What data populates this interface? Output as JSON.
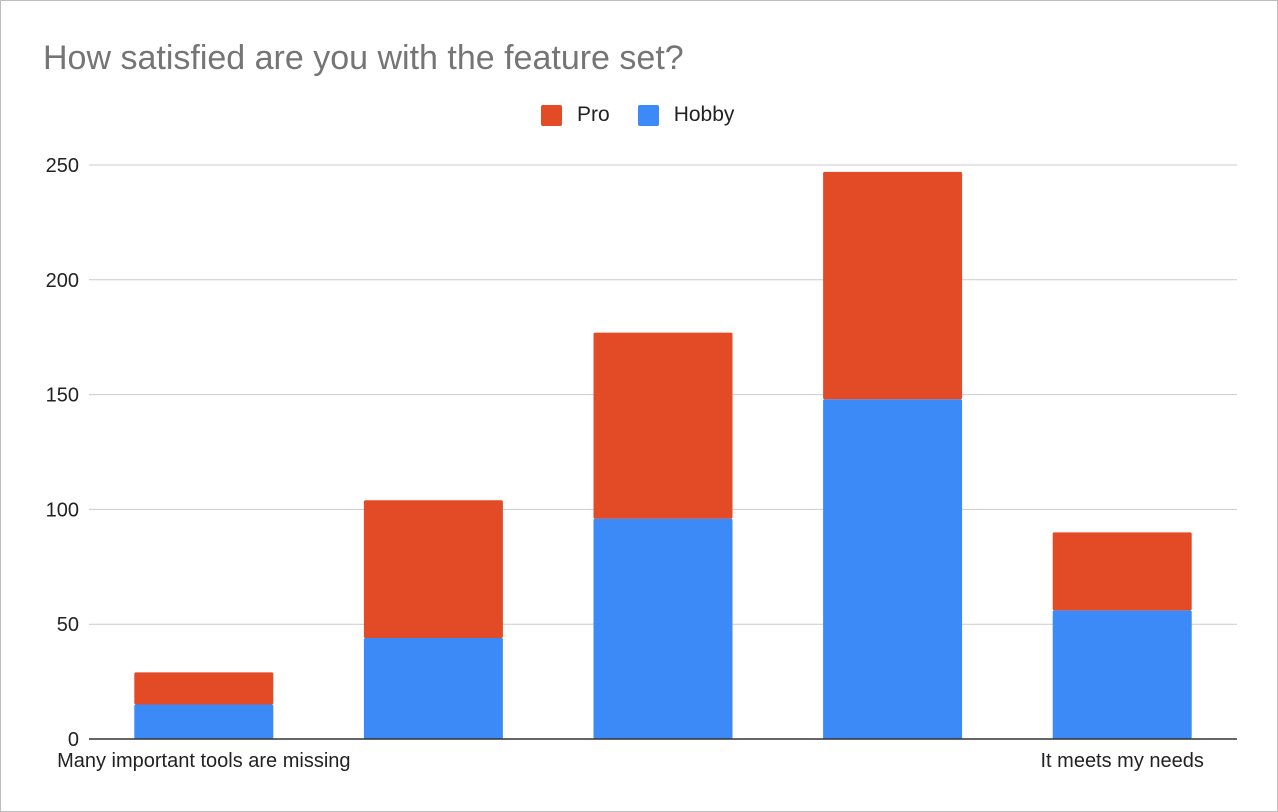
{
  "chart_data": {
    "type": "bar",
    "stacked": true,
    "title": "How satisfied are you with the feature set?",
    "xlabel": "",
    "ylabel": "",
    "categories": [
      "Many important tools are missing",
      "",
      "",
      "",
      "It meets my needs"
    ],
    "series": [
      {
        "name": "Hobby",
        "color": "#3c8af7",
        "values": [
          15,
          44,
          96,
          148,
          56
        ]
      },
      {
        "name": "Pro",
        "color": "#e34b26",
        "values": [
          14,
          60,
          81,
          99,
          34
        ]
      }
    ],
    "ylim": [
      0,
      250
    ],
    "yticks": [
      "0",
      "50",
      "100",
      "150",
      "200",
      "250"
    ],
    "grid": true,
    "legend": "top"
  }
}
